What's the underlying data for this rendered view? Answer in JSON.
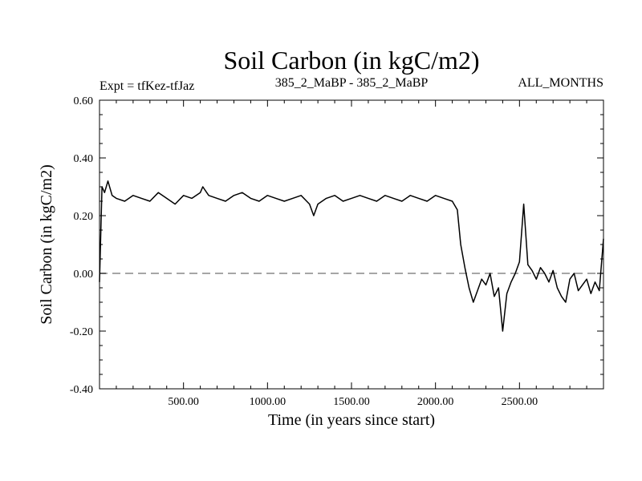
{
  "header": {
    "title": "Soil Carbon (in kgC/m2)",
    "expt": "Expt = tfKez-tfJaz",
    "subtitle": "385_2_MaBP - 385_2_MaBP",
    "period": "ALL_MONTHS"
  },
  "chart_data": {
    "type": "line",
    "xlabel": "Time (in years since start)",
    "ylabel": "Soil Carbon (in kgC/m2)",
    "xlim": [
      0,
      3000
    ],
    "ylim": [
      -0.4,
      0.6
    ],
    "x_ticks": [
      500,
      1000,
      1500,
      2000,
      2500
    ],
    "x_tick_labels": [
      "500.00",
      "1000.00",
      "1500.00",
      "2000.00",
      "2500.00"
    ],
    "y_ticks": [
      -0.4,
      -0.2,
      0.0,
      0.2,
      0.4,
      0.6
    ],
    "y_tick_labels": [
      "-0.40",
      "-0.20",
      "0.00",
      "0.20",
      "0.40",
      "0.60"
    ],
    "zero_line": {
      "y": 0.0,
      "style": "dashed",
      "color": "#888888"
    },
    "grid": false,
    "line_color": "#000000",
    "series": [
      {
        "x": [
          0,
          15,
          30,
          50,
          75,
          100,
          150,
          200,
          250,
          300,
          350,
          400,
          450,
          500,
          550,
          600,
          615,
          650,
          700,
          750,
          800,
          850,
          900,
          950,
          1000,
          1050,
          1100,
          1150,
          1200,
          1250,
          1275,
          1300,
          1350,
          1400,
          1450,
          1500,
          1550,
          1600,
          1650,
          1700,
          1750,
          1800,
          1850,
          1900,
          1950,
          2000,
          2050,
          2100,
          2130,
          2150,
          2175,
          2200,
          2225,
          2250,
          2275,
          2300,
          2325,
          2350,
          2375,
          2400,
          2425,
          2450,
          2475,
          2500,
          2525,
          2550,
          2575,
          2600,
          2625,
          2650,
          2675,
          2700,
          2725,
          2750,
          2775,
          2800,
          2825,
          2850,
          2875,
          2900,
          2925,
          2950,
          2975,
          3000
        ],
        "y": [
          -0.03,
          0.3,
          0.28,
          0.32,
          0.27,
          0.26,
          0.25,
          0.27,
          0.26,
          0.25,
          0.28,
          0.26,
          0.24,
          0.27,
          0.26,
          0.28,
          0.3,
          0.27,
          0.26,
          0.25,
          0.27,
          0.28,
          0.26,
          0.25,
          0.27,
          0.26,
          0.25,
          0.26,
          0.27,
          0.24,
          0.2,
          0.24,
          0.26,
          0.27,
          0.25,
          0.26,
          0.27,
          0.26,
          0.25,
          0.27,
          0.26,
          0.25,
          0.27,
          0.26,
          0.25,
          0.27,
          0.26,
          0.25,
          0.22,
          0.1,
          0.02,
          -0.05,
          -0.1,
          -0.06,
          -0.02,
          -0.04,
          0.0,
          -0.08,
          -0.05,
          -0.2,
          -0.07,
          -0.03,
          0.0,
          0.04,
          0.24,
          0.03,
          0.01,
          -0.02,
          0.02,
          0.0,
          -0.03,
          0.01,
          -0.05,
          -0.08,
          -0.1,
          -0.02,
          0.0,
          -0.06,
          -0.04,
          -0.02,
          -0.07,
          -0.03,
          -0.06,
          0.12
        ]
      }
    ]
  }
}
